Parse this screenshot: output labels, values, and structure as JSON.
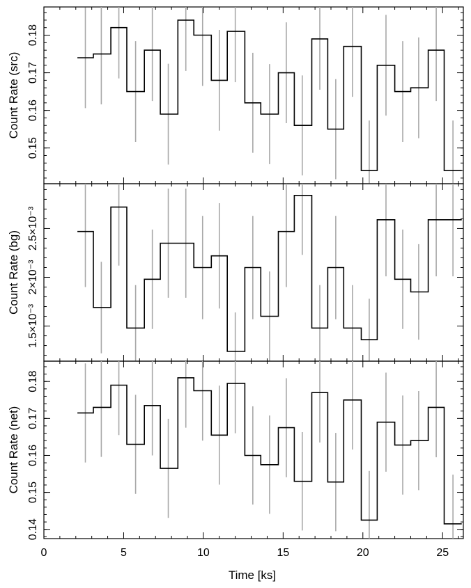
{
  "chart_data": {
    "type": "step",
    "x_label": "Time [ks]",
    "x_range": [
      0,
      26.3
    ],
    "x_ticks": [
      0,
      5,
      10,
      15,
      20,
      25
    ],
    "x_tick_labels": [
      "0",
      "5",
      "10",
      "15",
      "20",
      "25"
    ],
    "bin_edges": [
      2.1,
      3.1,
      4.2,
      5.2,
      6.3,
      7.3,
      8.4,
      9.4,
      10.5,
      11.5,
      12.6,
      13.6,
      14.7,
      15.7,
      16.8,
      17.8,
      18.8,
      19.9,
      20.9,
      22.0,
      23.0,
      24.1,
      25.1,
      26.2
    ],
    "err_x": [
      2.6,
      3.6,
      4.7,
      5.75,
      6.8,
      7.8,
      8.9,
      9.95,
      11.0,
      12.0,
      13.1,
      14.15,
      15.2,
      16.2,
      17.3,
      18.3,
      19.35,
      20.4,
      21.45,
      22.5,
      23.5,
      24.6,
      25.65
    ],
    "panels": [
      {
        "y_label": "Count Rate (src)",
        "y_range": [
          0.1405,
          0.1875
        ],
        "y_ticks": [
          0.15,
          0.16,
          0.17,
          0.18
        ],
        "y_tick_labels": [
          "0.15",
          "0.16",
          "0.17",
          "0.18"
        ],
        "minor_step": 0.002,
        "values": [
          0.174,
          0.175,
          0.182,
          0.165,
          0.176,
          0.159,
          0.184,
          0.18,
          0.168,
          0.181,
          0.162,
          0.159,
          0.17,
          0.156,
          0.179,
          0.155,
          0.177,
          0.144,
          0.172,
          0.165,
          0.166,
          0.176,
          0.144
        ],
        "errors": [
          0.0134,
          0.0134,
          0.0135,
          0.0134,
          0.0135,
          0.0134,
          0.0135,
          0.0135,
          0.0134,
          0.0135,
          0.0133,
          0.0133,
          0.0134,
          0.0133,
          0.0135,
          0.0133,
          0.0134,
          0.0133,
          0.0134,
          0.0134,
          0.0134,
          0.0135,
          0.0133
        ]
      },
      {
        "y_label": "Count Rate (bg)",
        "y_range": [
          0.00114,
          0.00296
        ],
        "y_ticks": [
          0.0015,
          0.002,
          0.0025
        ],
        "y_tick_labels": [
          "1.5×10⁻³",
          "2×10⁻³",
          "2.5×10⁻³"
        ],
        "minor_step": 0.0001,
        "values": [
          0.00247,
          0.00169,
          0.00272,
          0.00148,
          0.00198,
          0.00235,
          0.00235,
          0.0021,
          0.00222,
          0.00124,
          0.0021,
          0.0016,
          0.00247,
          0.00284,
          0.00148,
          0.0021,
          0.00148,
          0.00136,
          0.00259,
          0.00198,
          0.00185,
          0.00259,
          0.00259
        ],
        "errors": [
          0.00057,
          0.00047,
          0.0006,
          0.00044,
          0.00051,
          0.00056,
          0.00056,
          0.00053,
          0.00054,
          0.0004,
          0.00053,
          0.00046,
          0.00057,
          0.00061,
          0.00044,
          0.00053,
          0.00044,
          0.00042,
          0.00058,
          0.00051,
          0.00049,
          0.00058,
          0.00058
        ]
      },
      {
        "y_label": "Count Rate (net)",
        "y_range": [
          0.1375,
          0.1855
        ],
        "y_ticks": [
          0.14,
          0.15,
          0.16,
          0.17,
          0.18
        ],
        "y_tick_labels": [
          "0.14",
          "0.15",
          "0.16",
          "0.17",
          "0.18"
        ],
        "minor_step": 0.002,
        "values": [
          0.1715,
          0.173,
          0.179,
          0.163,
          0.1735,
          0.1565,
          0.181,
          0.1775,
          0.1655,
          0.1795,
          0.16,
          0.1575,
          0.1675,
          0.153,
          0.177,
          0.1528,
          0.175,
          0.1425,
          0.169,
          0.1628,
          0.164,
          0.173,
          0.1415
        ]
      }
    ]
  }
}
